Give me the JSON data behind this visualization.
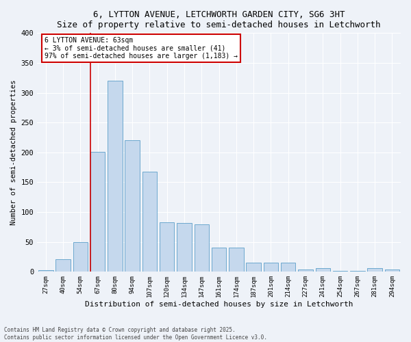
{
  "title": "6, LYTTON AVENUE, LETCHWORTH GARDEN CITY, SG6 3HT",
  "subtitle": "Size of property relative to semi-detached houses in Letchworth",
  "xlabel": "Distribution of semi-detached houses by size in Letchworth",
  "ylabel": "Number of semi-detached properties",
  "bar_color": "#c5d8ed",
  "bar_edge_color": "#5b9ec9",
  "categories": [
    "27sqm",
    "40sqm",
    "54sqm",
    "67sqm",
    "80sqm",
    "94sqm",
    "107sqm",
    "120sqm",
    "134sqm",
    "147sqm",
    "161sqm",
    "174sqm",
    "187sqm",
    "201sqm",
    "214sqm",
    "227sqm",
    "241sqm",
    "254sqm",
    "267sqm",
    "281sqm",
    "294sqm"
  ],
  "values": [
    3,
    21,
    50,
    201,
    320,
    220,
    168,
    83,
    82,
    80,
    41,
    41,
    15,
    15,
    15,
    4,
    6,
    1,
    1,
    6,
    4
  ],
  "ylim": [
    0,
    400
  ],
  "yticks": [
    0,
    50,
    100,
    150,
    200,
    250,
    300,
    350,
    400
  ],
  "vline_index": 3,
  "property_label": "6 LYTTON AVENUE: 63sqm",
  "annotation_line1": "← 3% of semi-detached houses are smaller (41)",
  "annotation_line2": "97% of semi-detached houses are larger (1,183) →",
  "vline_color": "#cc0000",
  "annotation_box_edge": "#cc0000",
  "footer1": "Contains HM Land Registry data © Crown copyright and database right 2025.",
  "footer2": "Contains public sector information licensed under the Open Government Licence v3.0.",
  "background_color": "#eef2f8",
  "grid_color": "#ffffff"
}
